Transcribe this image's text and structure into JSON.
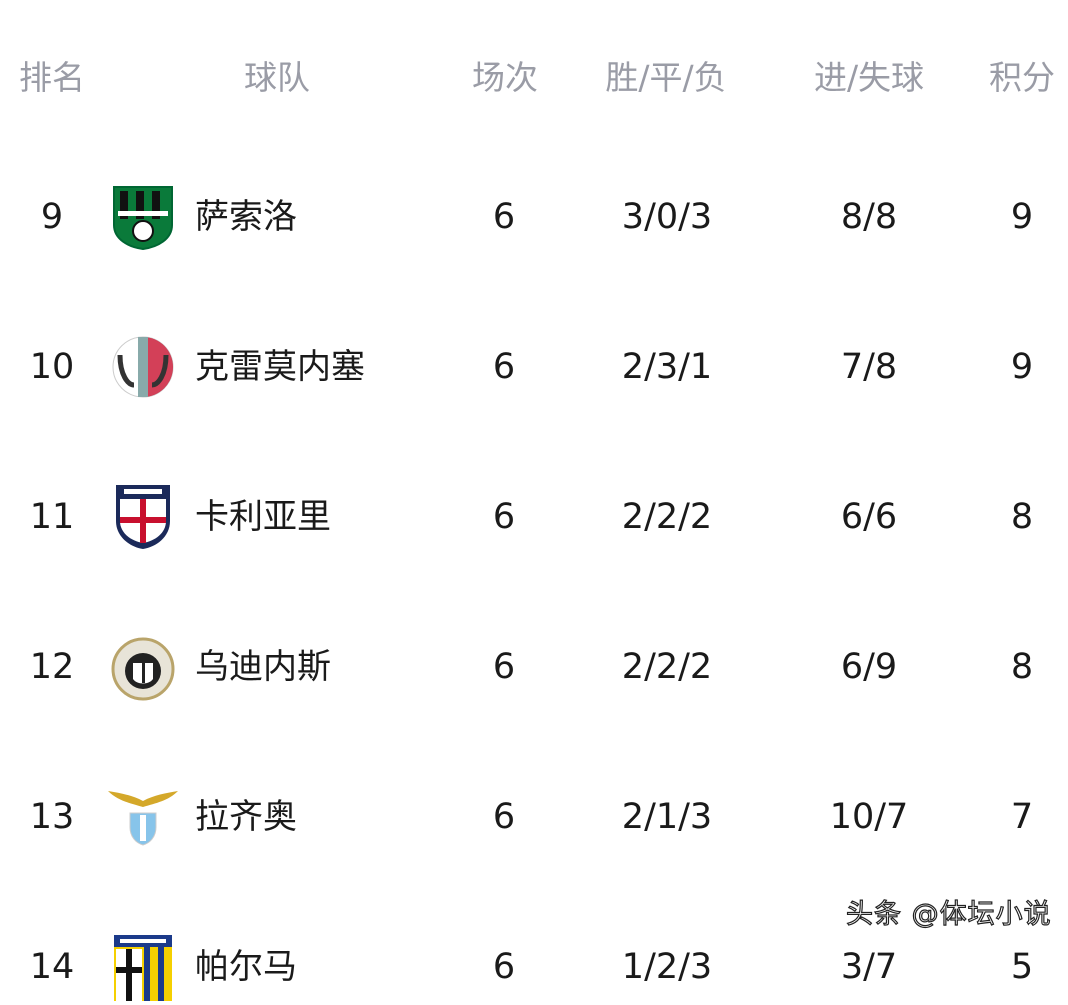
{
  "headers": {
    "rank": "排名",
    "team": "球队",
    "played": "场次",
    "wdl": "胜/平/负",
    "goals": "进/失球",
    "points": "积分"
  },
  "rows": [
    {
      "rank": "9",
      "team": "萨索洛",
      "logo": "sassuolo-logo",
      "played": "6",
      "wdl": "3/0/3",
      "goals": "8/8",
      "points": "9"
    },
    {
      "rank": "10",
      "team": "克雷莫内塞",
      "logo": "cremonese-logo",
      "played": "6",
      "wdl": "2/3/1",
      "goals": "7/8",
      "points": "9"
    },
    {
      "rank": "11",
      "team": "卡利亚里",
      "logo": "cagliari-logo",
      "played": "6",
      "wdl": "2/2/2",
      "goals": "6/6",
      "points": "8"
    },
    {
      "rank": "12",
      "team": "乌迪内斯",
      "logo": "udinese-logo",
      "played": "6",
      "wdl": "2/2/2",
      "goals": "6/9",
      "points": "8"
    },
    {
      "rank": "13",
      "team": "拉齐奥",
      "logo": "lazio-logo",
      "played": "6",
      "wdl": "2/1/3",
      "goals": "10/7",
      "points": "7"
    },
    {
      "rank": "14",
      "team": "帕尔马",
      "logo": "parma-logo",
      "played": "6",
      "wdl": "1/2/3",
      "goals": "3/7",
      "points": "5"
    }
  ],
  "watermark": "头条 @体坛小说"
}
